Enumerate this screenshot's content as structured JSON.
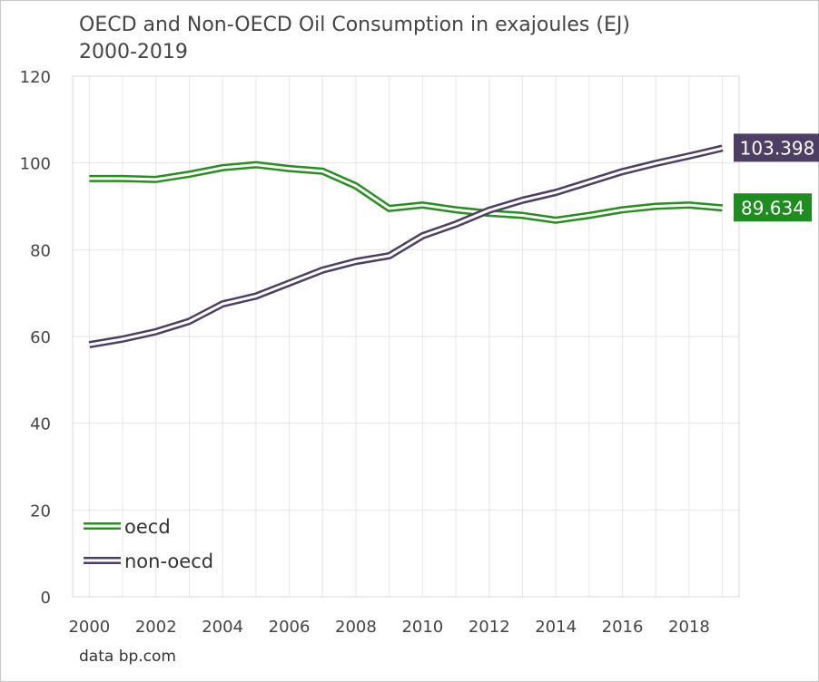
{
  "chart_data": {
    "type": "line",
    "title": "OECD and Non-OECD Oil Consumption in exajoules (EJ)",
    "subtitle": "2000-2019",
    "source": "data bp.com",
    "xlabel": "",
    "ylabel": "",
    "x": [
      2000,
      2001,
      2002,
      2003,
      2004,
      2005,
      2006,
      2007,
      2008,
      2009,
      2010,
      2011,
      2012,
      2013,
      2014,
      2015,
      2016,
      2017,
      2018,
      2019
    ],
    "xlim": [
      1999.5,
      2019.5
    ],
    "ylim": [
      0,
      120
    ],
    "x_ticks": [
      "2000",
      "2002",
      "2004",
      "2006",
      "2008",
      "2010",
      "2012",
      "2014",
      "2016",
      "2018"
    ],
    "y_ticks": [
      "0",
      "20",
      "40",
      "60",
      "80",
      "100",
      "120"
    ],
    "grid": true,
    "legend_position": "bottom-left",
    "series": [
      {
        "name": "oecd",
        "color": "#2a8c22",
        "values": [
          96.4,
          96.4,
          96.2,
          97.4,
          98.9,
          99.6,
          98.7,
          98.1,
          94.7,
          89.5,
          90.3,
          89.2,
          88.4,
          87.9,
          86.8,
          87.9,
          89.2,
          90.0,
          90.3,
          89.634
        ],
        "end_label": "89.634",
        "end_label_color": "#1e8c1e"
      },
      {
        "name": "non-oecd",
        "color": "#4d3f63",
        "values": [
          58.1,
          59.4,
          61.1,
          63.5,
          67.5,
          69.3,
          72.3,
          75.3,
          77.3,
          78.6,
          83.2,
          85.9,
          89.1,
          91.4,
          93.2,
          95.6,
          98.0,
          99.9,
          101.6,
          103.398
        ],
        "end_label": "103.398",
        "end_label_color": "#4d3f63"
      }
    ]
  }
}
